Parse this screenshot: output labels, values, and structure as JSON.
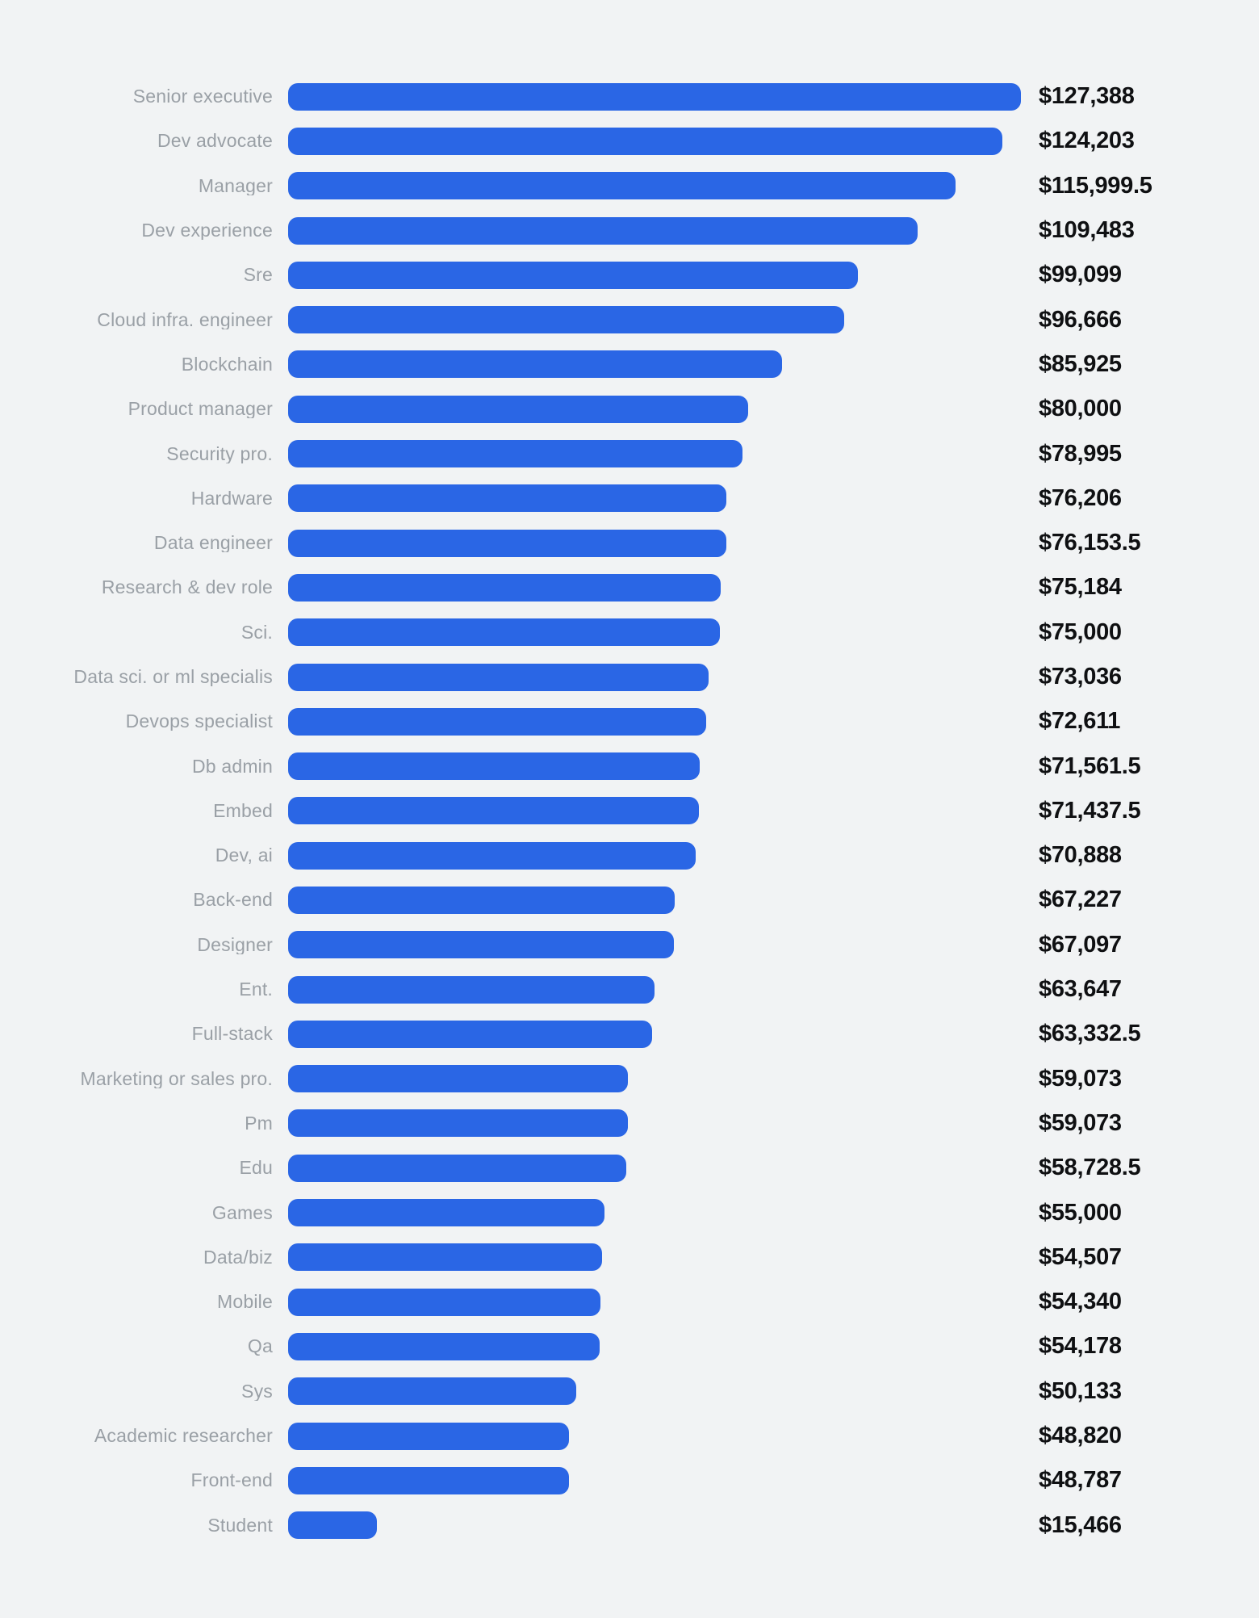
{
  "chart_data": {
    "type": "bar",
    "orientation": "horizontal",
    "value_prefix": "$",
    "legend": "none",
    "grid": false,
    "value_label_position": "end-of-bar",
    "category_label_position": "left-right-aligned",
    "xlim": [
      0,
      127388
    ],
    "categories": [
      "Senior executive",
      "Dev advocate",
      "Manager",
      "Dev experience",
      "Sre",
      "Cloud infra. engineer",
      "Blockchain",
      "Product manager",
      "Security pro.",
      "Hardware",
      "Data engineer",
      "Research & dev role",
      "Sci.",
      "Data sci. or ml specialis",
      "Devops specialist",
      "Db admin",
      "Embed",
      "Dev, ai",
      "Back-end",
      "Designer",
      "Ent.",
      "Full-stack",
      "Marketing or sales pro.",
      "Pm",
      "Edu",
      "Games",
      "Data/biz",
      "Mobile",
      "Qa",
      "Sys",
      "Academic researcher",
      "Front-end",
      "Student"
    ],
    "values": [
      127388,
      124203,
      115999.5,
      109483,
      99099,
      96666,
      85925,
      80000,
      78995,
      76206,
      76153.5,
      75184,
      75000,
      73036,
      72611,
      71561.5,
      71437.5,
      70888,
      67227,
      67097,
      63647,
      63332.5,
      59073,
      59073,
      58728.5,
      55000,
      54507,
      54340,
      54178,
      50133,
      48820,
      48787,
      15466
    ],
    "value_labels": [
      "$127,388",
      "$124,203",
      "$115,999.5",
      "$109,483",
      "$99,099",
      "$96,666",
      "$85,925",
      "$80,000",
      "$78,995",
      "$76,206",
      "$76,153.5",
      "$75,184",
      "$75,000",
      "$73,036",
      "$72,611",
      "$71,561.5",
      "$71,437.5",
      "$70,888",
      "$67,227",
      "$67,097",
      "$63,647",
      "$63,332.5",
      "$59,073",
      "$59,073",
      "$58,728.5",
      "$55,000",
      "$54,507",
      "$54,340",
      "$54,178",
      "$50,133",
      "$48,820",
      "$48,787",
      "$15,466"
    ],
    "colors": {
      "bar": "#2a66e5",
      "background": "#f1f3f4",
      "category_label": "#9aa0a6",
      "value_label": "#0f1012"
    }
  }
}
